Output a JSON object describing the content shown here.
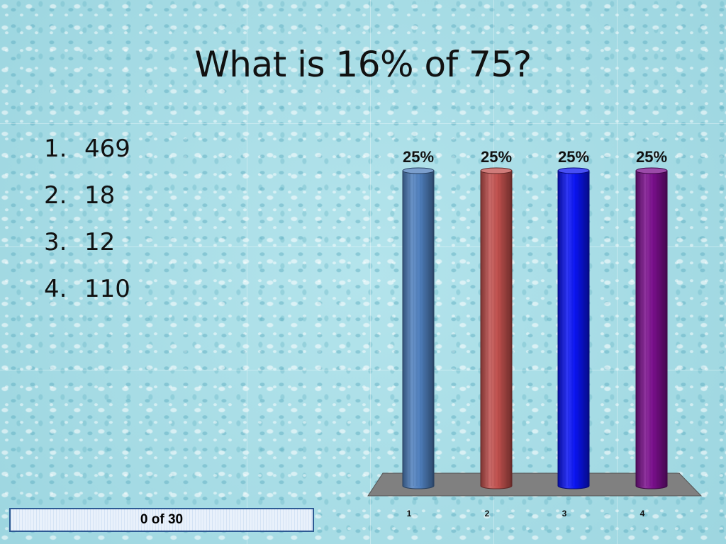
{
  "question": "What is 16% of 75?",
  "answers": [
    {
      "number": "1.",
      "text": "469"
    },
    {
      "number": "2.",
      "text": "18"
    },
    {
      "number": "3.",
      "text": "12"
    },
    {
      "number": "4.",
      "text": "110"
    }
  ],
  "response_counter": "0 of 30",
  "colors": {
    "bar_1": "#4f7fbd",
    "bar_2": "#c0504d",
    "bar_3": "#0a14f2",
    "bar_4": "#7a0f8c",
    "floor": "#808080"
  },
  "chart_data": {
    "type": "bar",
    "categories": [
      "1",
      "2",
      "3",
      "4"
    ],
    "values": [
      25,
      25,
      25,
      25
    ],
    "data_labels": [
      "25%",
      "25%",
      "25%",
      "25%"
    ],
    "ylim": [
      0,
      25
    ],
    "grid": false,
    "legend": "none"
  }
}
